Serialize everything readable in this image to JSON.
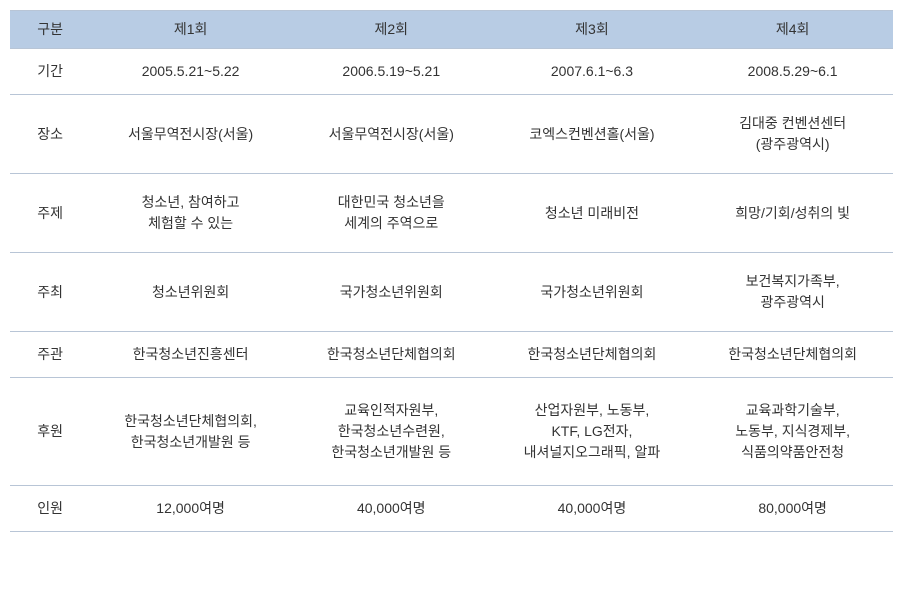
{
  "table": {
    "header_bg": "#b8cce4",
    "border_color": "#b8c5d6",
    "text_color": "#333333",
    "font_size": 14,
    "columns": [
      "구분",
      "제1회",
      "제2회",
      "제3회",
      "제4회"
    ],
    "rows": [
      {
        "label": "기간",
        "cells": [
          "2005.5.21~5.22",
          "2006.5.19~5.21",
          "2007.6.1~6.3",
          "2008.5.29~6.1"
        ]
      },
      {
        "label": "장소",
        "cells": [
          "서울무역전시장(서울)",
          "서울무역전시장(서울)",
          "코엑스컨벤션홀(서울)",
          "김대중 컨벤션센터\n(광주광역시)"
        ]
      },
      {
        "label": "주제",
        "cells": [
          "청소년, 참여하고\n체험할 수 있는",
          "대한민국 청소년을\n세계의 주역으로",
          "청소년 미래비전",
          "희망/기회/성취의 빛"
        ]
      },
      {
        "label": "주최",
        "cells": [
          "청소년위원회",
          "국가청소년위원회",
          "국가청소년위원회",
          "보건복지가족부,\n광주광역시"
        ]
      },
      {
        "label": "주관",
        "cells": [
          "한국청소년진흥센터",
          "한국청소년단체협의회",
          "한국청소년단체협의회",
          "한국청소년단체협의회"
        ]
      },
      {
        "label": "후원",
        "cells": [
          "한국청소년단체협의회,\n한국청소년개발원 등",
          "교육인적자원부,\n한국청소년수련원,\n한국청소년개발원 등",
          "산업자원부, 노동부,\nKTF, LG전자,\n내셔널지오그래픽, 알파",
          "교육과학기술부,\n노동부, 지식경제부,\n식품의약품안전청"
        ]
      },
      {
        "label": "인원",
        "cells": [
          "12,000여명",
          "40,000여명",
          "40,000여명",
          "80,000여명"
        ]
      }
    ]
  }
}
